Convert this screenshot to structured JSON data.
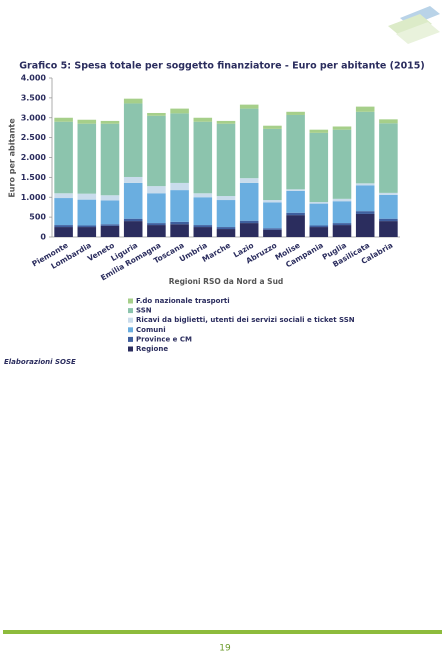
{
  "chart_data": {
    "type": "stacked-bar",
    "title": "Grafico 5: Spesa totale per soggetto finanziatore - Euro per abitante (2015)",
    "y_label": "Euro per abitante",
    "x_label": "Regioni RSO da Nord a Sud",
    "categories": [
      "Piemonte",
      "Lombardia",
      "Veneto",
      "Liguria",
      "Emilia Romagna",
      "Toscana",
      "Umbria",
      "Marche",
      "Lazio",
      "Abruzzo",
      "Molise",
      "Campania",
      "Puglia",
      "Basilicata",
      "Calabria"
    ],
    "series": [
      {
        "name": "Regione",
        "color": "#2b2d5e",
        "values": [
          250,
          250,
          280,
          400,
          300,
          320,
          250,
          200,
          350,
          180,
          550,
          250,
          300,
          580,
          400
        ]
      },
      {
        "name": "Province e CM",
        "color": "#3f5f9e",
        "values": [
          50,
          40,
          40,
          60,
          50,
          60,
          50,
          50,
          60,
          40,
          60,
          40,
          50,
          70,
          60
        ]
      },
      {
        "name": "Comuni",
        "color": "#6aaee0",
        "values": [
          680,
          650,
          600,
          900,
          750,
          800,
          700,
          680,
          950,
          650,
          550,
          550,
          550,
          650,
          600
        ]
      },
      {
        "name": "Ricavi da biglietti, utenti dei servizi sociali e ticket SSN",
        "color": "#c9dcec",
        "values": [
          120,
          150,
          130,
          150,
          180,
          180,
          100,
          100,
          120,
          60,
          40,
          40,
          60,
          50,
          50
        ]
      },
      {
        "name": "SSN",
        "color": "#8cc4ad",
        "values": [
          1800,
          1760,
          1800,
          1850,
          1770,
          1750,
          1800,
          1820,
          1750,
          1790,
          1870,
          1740,
          1740,
          1800,
          1750
        ]
      },
      {
        "name": "F.do nazionale trasporti",
        "color": "#a6cf8a",
        "values": [
          100,
          100,
          70,
          120,
          70,
          120,
          100,
          70,
          100,
          80,
          80,
          80,
          80,
          130,
          100
        ]
      }
    ],
    "ylim": [
      0,
      4000
    ],
    "yticks": [
      0,
      500,
      {
        "value": 1000,
        "label": "1.000"
      },
      {
        "value": 1500,
        "label": "1.500"
      },
      {
        "value": 2000,
        "label": "2.000"
      },
      {
        "value": 2500,
        "label": "2.500"
      },
      {
        "value": 3000,
        "label": "3.000"
      },
      {
        "value": 3500,
        "label": "3.500"
      },
      {
        "value": 4000,
        "label": "4.000"
      }
    ],
    "grid": false
  },
  "source_note": "Elaborazioni SOSE",
  "page_number": "19"
}
